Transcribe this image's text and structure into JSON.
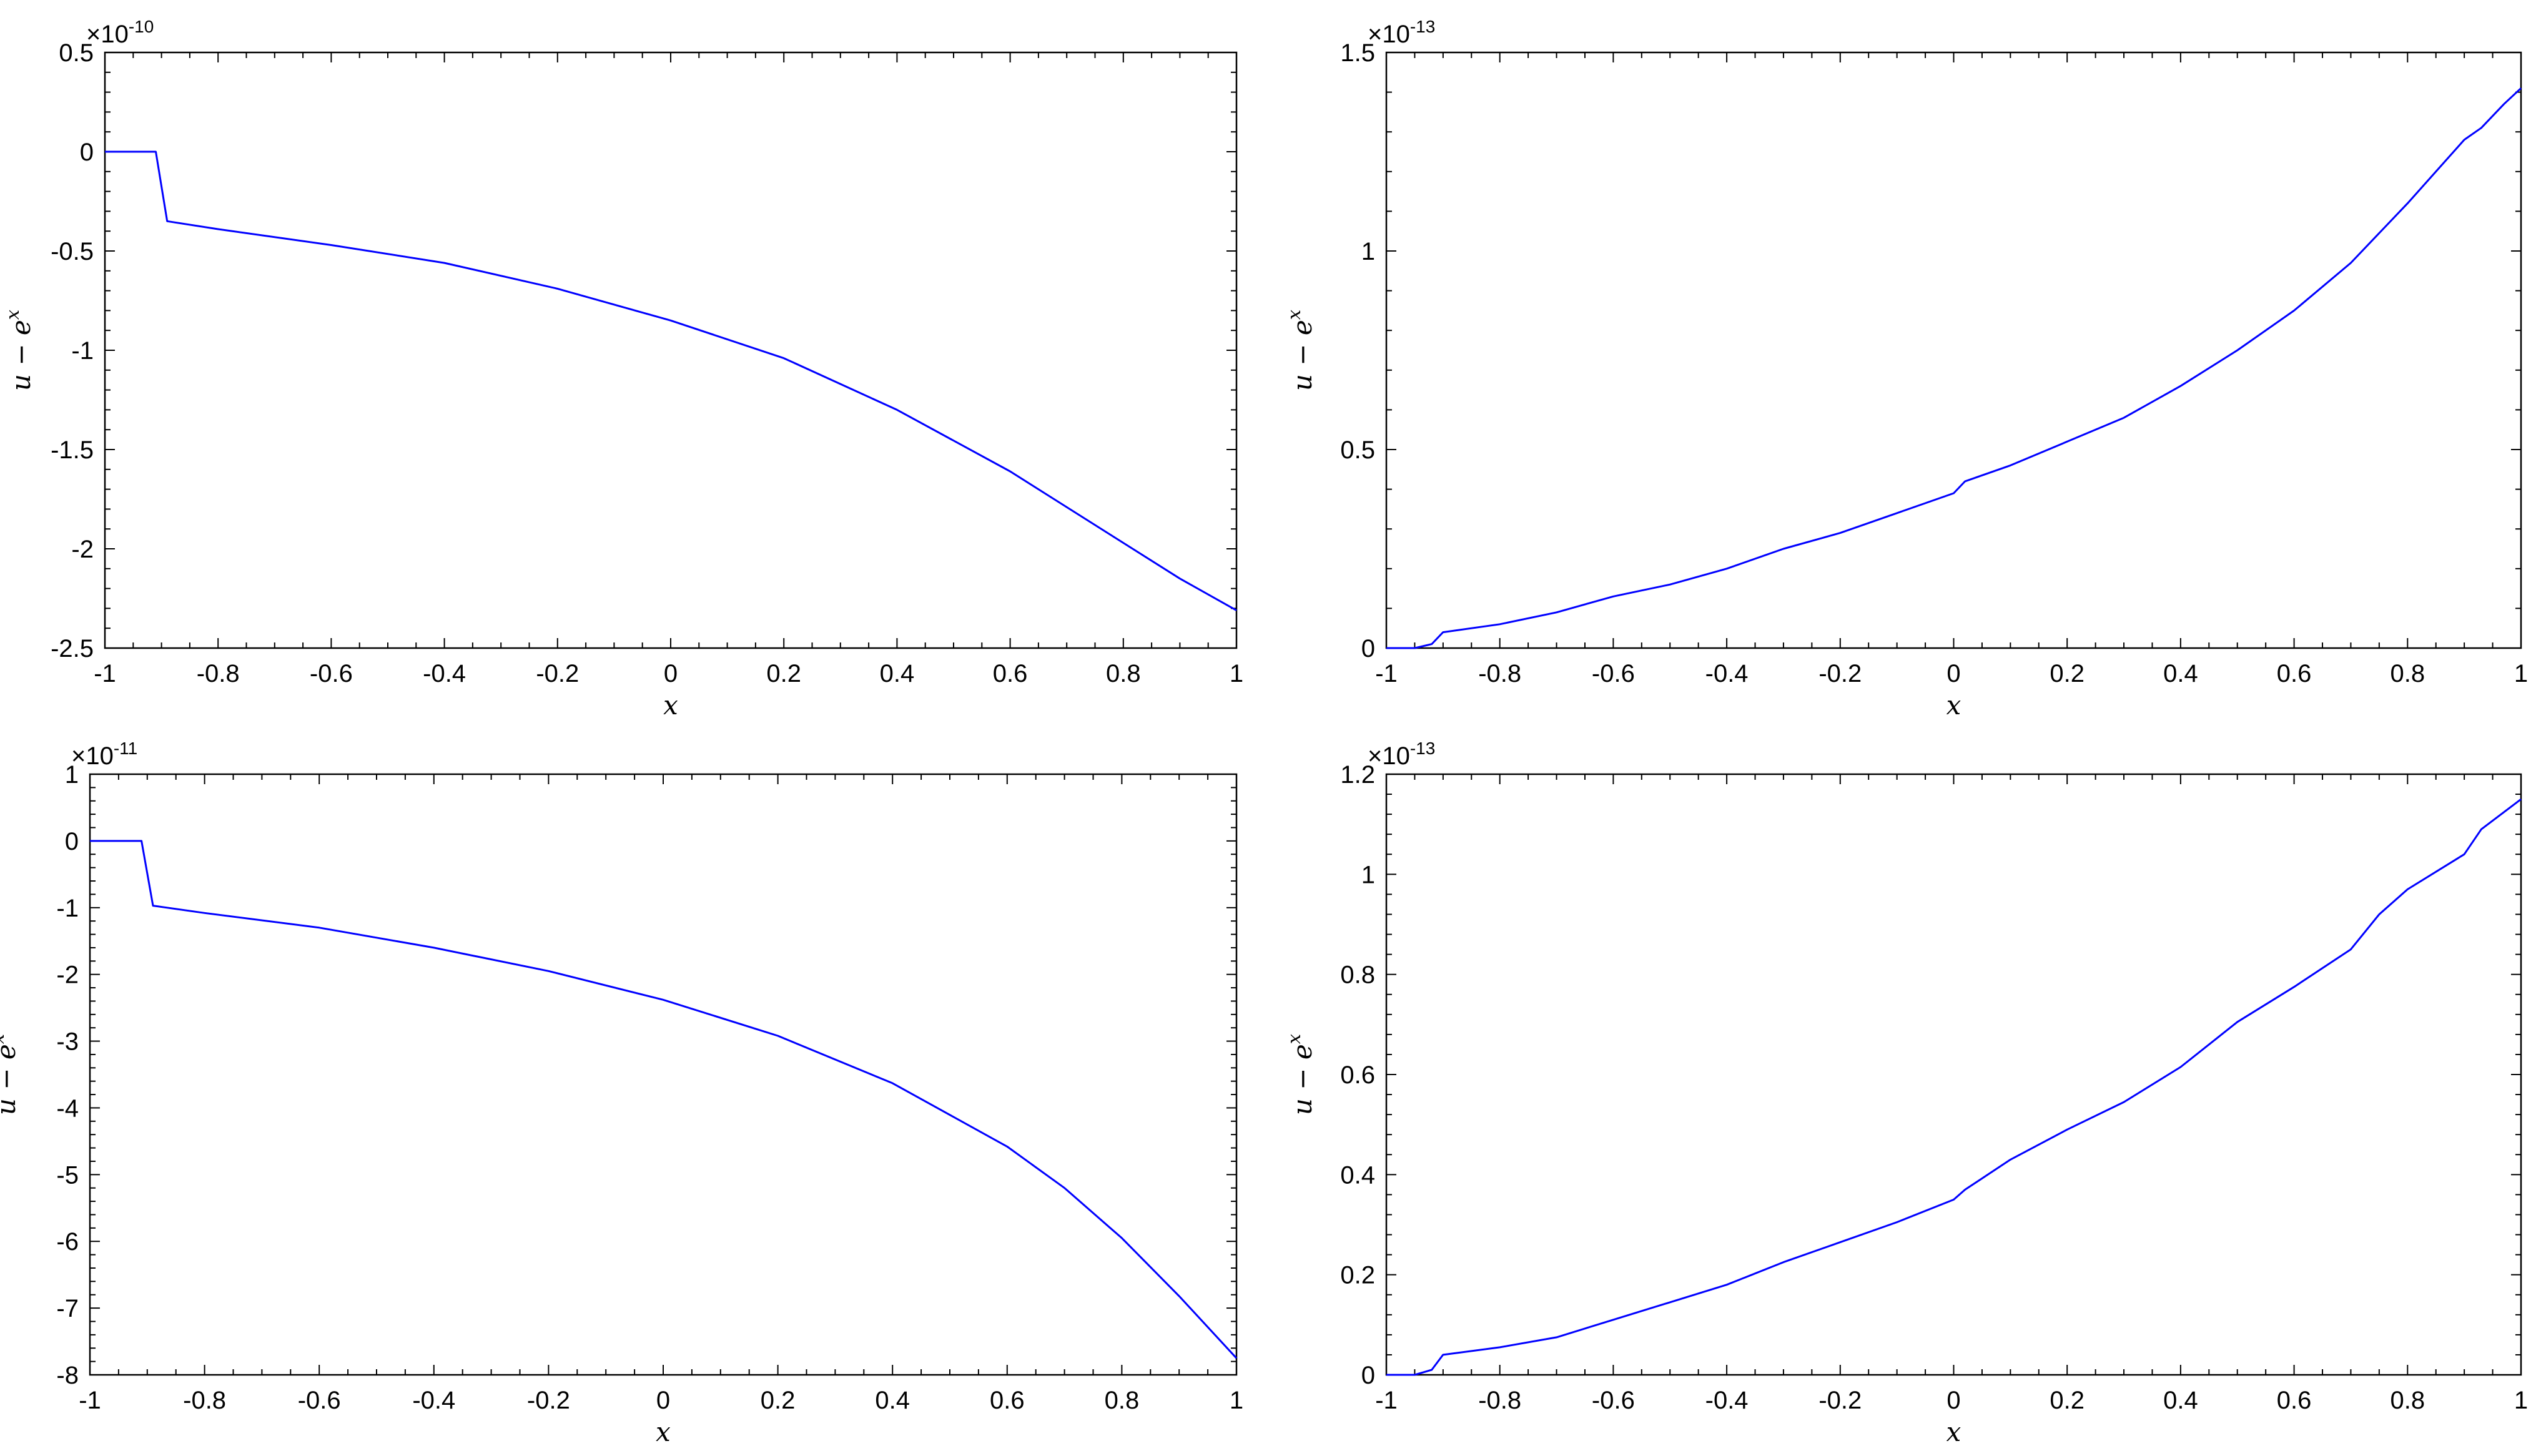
{
  "chart_data": [
    {
      "type": "line",
      "xlabel": "x",
      "ylabel": [
        "u − e",
        "x"
      ],
      "xlim": [
        -1,
        1
      ],
      "ylim": [
        -2.5,
        0.5
      ],
      "y_exponent": {
        "base": "×10",
        "power": "-10"
      },
      "xticks": [
        -1,
        -0.8,
        -0.6,
        -0.4,
        -0.2,
        0,
        0.2,
        0.4,
        0.6,
        0.8,
        1
      ],
      "xticklabels": [
        "-1",
        "-0.8",
        "-0.6",
        "-0.4",
        "-0.2",
        "0",
        "0.2",
        "0.4",
        "0.6",
        "0.8",
        "1"
      ],
      "yticks": [
        -2.5,
        -2,
        -1.5,
        -1,
        -0.5,
        0,
        0.5
      ],
      "yticklabels": [
        "-2.5",
        "-2",
        "-1.5",
        "-1",
        "-0.5",
        "0",
        "0.5"
      ],
      "grid": false,
      "series": [
        {
          "color": "#0000ff",
          "x": [
            -1,
            -0.91,
            -0.89,
            -0.8,
            -0.6,
            -0.4,
            -0.2,
            0,
            0.2,
            0.4,
            0.6,
            0.8,
            0.9,
            1
          ],
          "y": [
            0,
            0,
            -0.35,
            -0.39,
            -0.47,
            -0.56,
            -0.69,
            -0.85,
            -1.04,
            -1.3,
            -1.61,
            -1.97,
            -2.15,
            -2.31
          ]
        }
      ]
    },
    {
      "type": "line",
      "xlabel": "x",
      "ylabel": [
        "u − e",
        "x"
      ],
      "xlim": [
        -1,
        1
      ],
      "ylim": [
        0,
        1.5
      ],
      "y_exponent": {
        "base": "×10",
        "power": "-13"
      },
      "xticks": [
        -1,
        -0.8,
        -0.6,
        -0.4,
        -0.2,
        0,
        0.2,
        0.4,
        0.6,
        0.8,
        1
      ],
      "xticklabels": [
        "-1",
        "-0.8",
        "-0.6",
        "-0.4",
        "-0.2",
        "0",
        "0.2",
        "0.4",
        "0.6",
        "0.8",
        "1"
      ],
      "yticks": [
        0,
        0.5,
        1,
        1.5
      ],
      "yticklabels": [
        "0",
        "0.5",
        "1",
        "1.5"
      ],
      "grid": false,
      "series": [
        {
          "color": "#0000ff",
          "x": [
            -1,
            -0.95,
            -0.92,
            -0.9,
            -0.8,
            -0.7,
            -0.6,
            -0.5,
            -0.4,
            -0.3,
            -0.2,
            -0.1,
            0,
            0.02,
            0.1,
            0.2,
            0.3,
            0.4,
            0.5,
            0.6,
            0.7,
            0.8,
            0.9,
            0.93,
            0.97,
            1
          ],
          "y": [
            0,
            0,
            0.01,
            0.04,
            0.06,
            0.09,
            0.13,
            0.16,
            0.2,
            0.25,
            0.29,
            0.34,
            0.39,
            0.42,
            0.46,
            0.52,
            0.58,
            0.66,
            0.75,
            0.85,
            0.97,
            1.12,
            1.28,
            1.31,
            1.37,
            1.41
          ]
        }
      ]
    },
    {
      "type": "line",
      "xlabel": "x",
      "ylabel": [
        "u − e",
        "x"
      ],
      "xlim": [
        -1,
        1
      ],
      "ylim": [
        -8,
        1
      ],
      "y_exponent": {
        "base": "×10",
        "power": "-11"
      },
      "xticks": [
        -1,
        -0.8,
        -0.6,
        -0.4,
        -0.2,
        0,
        0.2,
        0.4,
        0.6,
        0.8,
        1
      ],
      "xticklabels": [
        "-1",
        "-0.8",
        "-0.6",
        "-0.4",
        "-0.2",
        "0",
        "0.2",
        "0.4",
        "0.6",
        "0.8",
        "1"
      ],
      "yticks": [
        -8,
        -7,
        -6,
        -5,
        -4,
        -3,
        -2,
        -1,
        0,
        1
      ],
      "yticklabels": [
        "-8",
        "-7",
        "-6",
        "-5",
        "-4",
        "-3",
        "-2",
        "-1",
        "0",
        "1"
      ],
      "grid": false,
      "series": [
        {
          "color": "#0000ff",
          "x": [
            -1,
            -0.91,
            -0.89,
            -0.8,
            -0.6,
            -0.4,
            -0.2,
            0,
            0.2,
            0.4,
            0.6,
            0.7,
            0.8,
            0.9,
            1
          ],
          "y": [
            0,
            0,
            -0.97,
            -1.08,
            -1.3,
            -1.6,
            -1.95,
            -2.38,
            -2.92,
            -3.63,
            -4.58,
            -5.2,
            -5.95,
            -6.82,
            -7.75
          ]
        }
      ]
    },
    {
      "type": "line",
      "xlabel": "x",
      "ylabel": [
        "u − e",
        "x"
      ],
      "xlim": [
        -1,
        1
      ],
      "ylim": [
        0,
        1.2
      ],
      "y_exponent": {
        "base": "×10",
        "power": "-13"
      },
      "xticks": [
        -1,
        -0.8,
        -0.6,
        -0.4,
        -0.2,
        0,
        0.2,
        0.4,
        0.6,
        0.8,
        1
      ],
      "xticklabels": [
        "-1",
        "-0.8",
        "-0.6",
        "-0.4",
        "-0.2",
        "0",
        "0.2",
        "0.4",
        "0.6",
        "0.8",
        "1"
      ],
      "yticks": [
        0,
        0.2,
        0.4,
        0.6,
        0.8,
        1,
        1.2
      ],
      "yticklabels": [
        "0",
        "0.2",
        "0.4",
        "0.6",
        "0.8",
        "1",
        "1.2"
      ],
      "grid": false,
      "series": [
        {
          "color": "#0000ff",
          "x": [
            -1,
            -0.95,
            -0.92,
            -0.9,
            -0.8,
            -0.7,
            -0.6,
            -0.5,
            -0.4,
            -0.3,
            -0.2,
            -0.1,
            0,
            0.02,
            0.1,
            0.2,
            0.3,
            0.4,
            0.5,
            0.6,
            0.7,
            0.75,
            0.8,
            0.9,
            0.93,
            1
          ],
          "y": [
            0,
            0,
            0.01,
            0.04,
            0.055,
            0.075,
            0.11,
            0.145,
            0.18,
            0.225,
            0.265,
            0.305,
            0.35,
            0.37,
            0.43,
            0.49,
            0.545,
            0.615,
            0.705,
            0.775,
            0.85,
            0.92,
            0.97,
            1.04,
            1.09,
            1.15
          ]
        }
      ]
    }
  ]
}
